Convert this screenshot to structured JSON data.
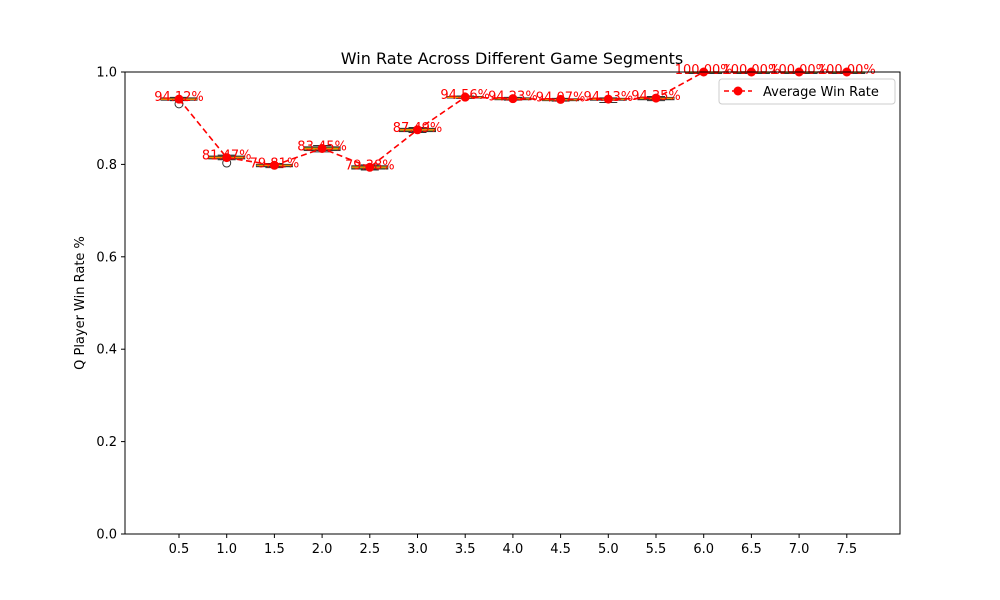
{
  "chart_data": {
    "type": "line",
    "title": "Win Rate Across Different Game Segments",
    "xlabel": "",
    "ylabel": "Q Player Win Rate %",
    "ylim": [
      0,
      1.0
    ],
    "yticks": [
      "0.0",
      "0.2",
      "0.4",
      "0.6",
      "0.8",
      "1.0"
    ],
    "categories": [
      "0.5",
      "1.0",
      "1.5",
      "2.0",
      "2.5",
      "3.0",
      "3.5",
      "4.0",
      "4.5",
      "5.0",
      "5.5",
      "6.0",
      "6.5",
      "7.0",
      "7.5"
    ],
    "series": [
      {
        "name": "Average Win Rate",
        "color": "#ff0000",
        "style": "dashed-with-circle-markers",
        "values": [
          0.9412,
          0.8147,
          0.7981,
          0.8345,
          0.7938,
          0.8749,
          0.9456,
          0.9423,
          0.9407,
          0.9413,
          0.9435,
          1.0,
          1.0,
          1.0,
          1.0
        ]
      }
    ],
    "data_labels": [
      "94.12%",
      "81.47%",
      "79.81%",
      "83.45%",
      "79.38%",
      "87.49%",
      "94.56%",
      "94.23%",
      "94.07%",
      "94.13%",
      "94.35%",
      "100.00%",
      "100.00%",
      "100.00%",
      "100.00%"
    ],
    "boxes": [
      {
        "q1": 0.939,
        "median": 0.941,
        "q3": 0.944,
        "low": 0.938,
        "high": 0.945,
        "outliers": [
          0.931
        ]
      },
      {
        "q1": 0.812,
        "median": 0.815,
        "q3": 0.818,
        "low": 0.81,
        "high": 0.82,
        "outliers": [
          0.803
        ]
      },
      {
        "q1": 0.795,
        "median": 0.798,
        "q3": 0.8,
        "low": 0.793,
        "high": 0.802,
        "outliers": []
      },
      {
        "q1": 0.83,
        "median": 0.834,
        "q3": 0.838,
        "low": 0.827,
        "high": 0.841,
        "outliers": []
      },
      {
        "q1": 0.79,
        "median": 0.794,
        "q3": 0.797,
        "low": 0.788,
        "high": 0.799,
        "outliers": []
      },
      {
        "q1": 0.871,
        "median": 0.875,
        "q3": 0.878,
        "low": 0.869,
        "high": 0.88,
        "outliers": []
      },
      {
        "q1": 0.944,
        "median": 0.945,
        "q3": 0.947,
        "low": 0.943,
        "high": 0.948,
        "outliers": []
      },
      {
        "q1": 0.94,
        "median": 0.942,
        "q3": 0.944,
        "low": 0.939,
        "high": 0.945,
        "outliers": []
      },
      {
        "q1": 0.938,
        "median": 0.94,
        "q3": 0.942,
        "low": 0.937,
        "high": 0.943,
        "outliers": []
      },
      {
        "q1": 0.939,
        "median": 0.941,
        "q3": 0.943,
        "low": 0.934,
        "high": 0.944,
        "outliers": []
      },
      {
        "q1": 0.94,
        "median": 0.943,
        "q3": 0.945,
        "low": 0.938,
        "high": 0.947,
        "outliers": []
      },
      {
        "q1": 1.0,
        "median": 1.0,
        "q3": 1.0,
        "low": 1.0,
        "high": 1.0,
        "outliers": []
      },
      {
        "q1": 1.0,
        "median": 1.0,
        "q3": 1.0,
        "low": 1.0,
        "high": 1.0,
        "outliers": []
      },
      {
        "q1": 1.0,
        "median": 1.0,
        "q3": 1.0,
        "low": 1.0,
        "high": 1.0,
        "outliers": []
      },
      {
        "q1": 1.0,
        "median": 1.0,
        "q3": 1.0,
        "low": 1.0,
        "high": 1.0,
        "outliers": []
      }
    ],
    "box_fill": "#6b8e23",
    "box_median_color": "#ff8c00",
    "grid": false,
    "legend_position": "top-right"
  }
}
